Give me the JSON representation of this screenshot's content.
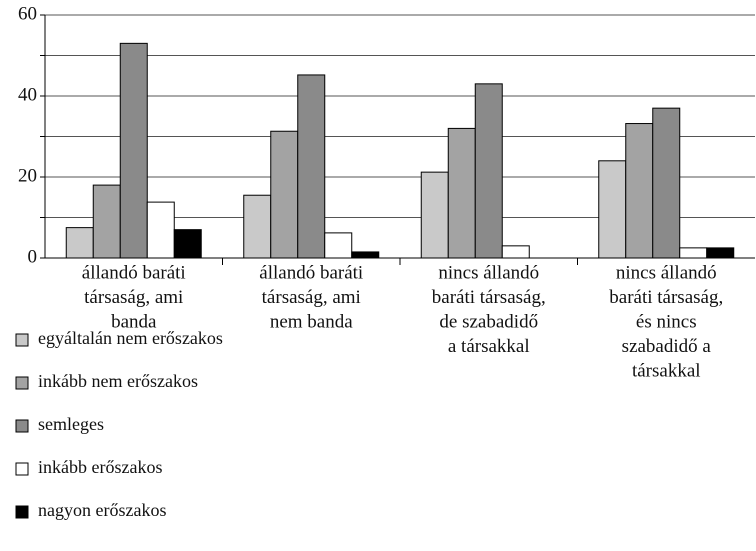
{
  "chart_data": {
    "type": "bar",
    "categories": [
      [
        "állandó baráti",
        "társaság, ami",
        "banda"
      ],
      [
        "állandó baráti",
        "társaság, ami",
        "nem banda"
      ],
      [
        "nincs állandó",
        "baráti társaság,",
        "de szabadidő",
        "a társakkal"
      ],
      [
        "nincs állandó",
        "baráti társaság,",
        "és nincs",
        "szabadidő a",
        "társakkal"
      ]
    ],
    "series": [
      {
        "name": "egyáltalán nem erőszakos",
        "color": "#c9c9c9",
        "values": [
          7.5,
          15.5,
          21.2,
          24
        ]
      },
      {
        "name": "inkább nem erőszakos",
        "color": "#a3a3a3",
        "values": [
          18,
          31.3,
          32,
          33.2
        ]
      },
      {
        "name": "semleges",
        "color": "#8a8a8a",
        "values": [
          53,
          45.2,
          43,
          37
        ]
      },
      {
        "name": "inkább erőszakos",
        "color": "#ffffff",
        "values": [
          13.8,
          6.2,
          3,
          2.5
        ]
      },
      {
        "name": "nagyon erőszakos",
        "color": "#000000",
        "values": [
          7,
          1.5,
          0,
          2.5
        ]
      }
    ],
    "ylim": [
      0,
      60
    ],
    "yticks": [
      0,
      20,
      40,
      60
    ],
    "minor_yticks": [
      10,
      30,
      50
    ],
    "grid": true
  }
}
